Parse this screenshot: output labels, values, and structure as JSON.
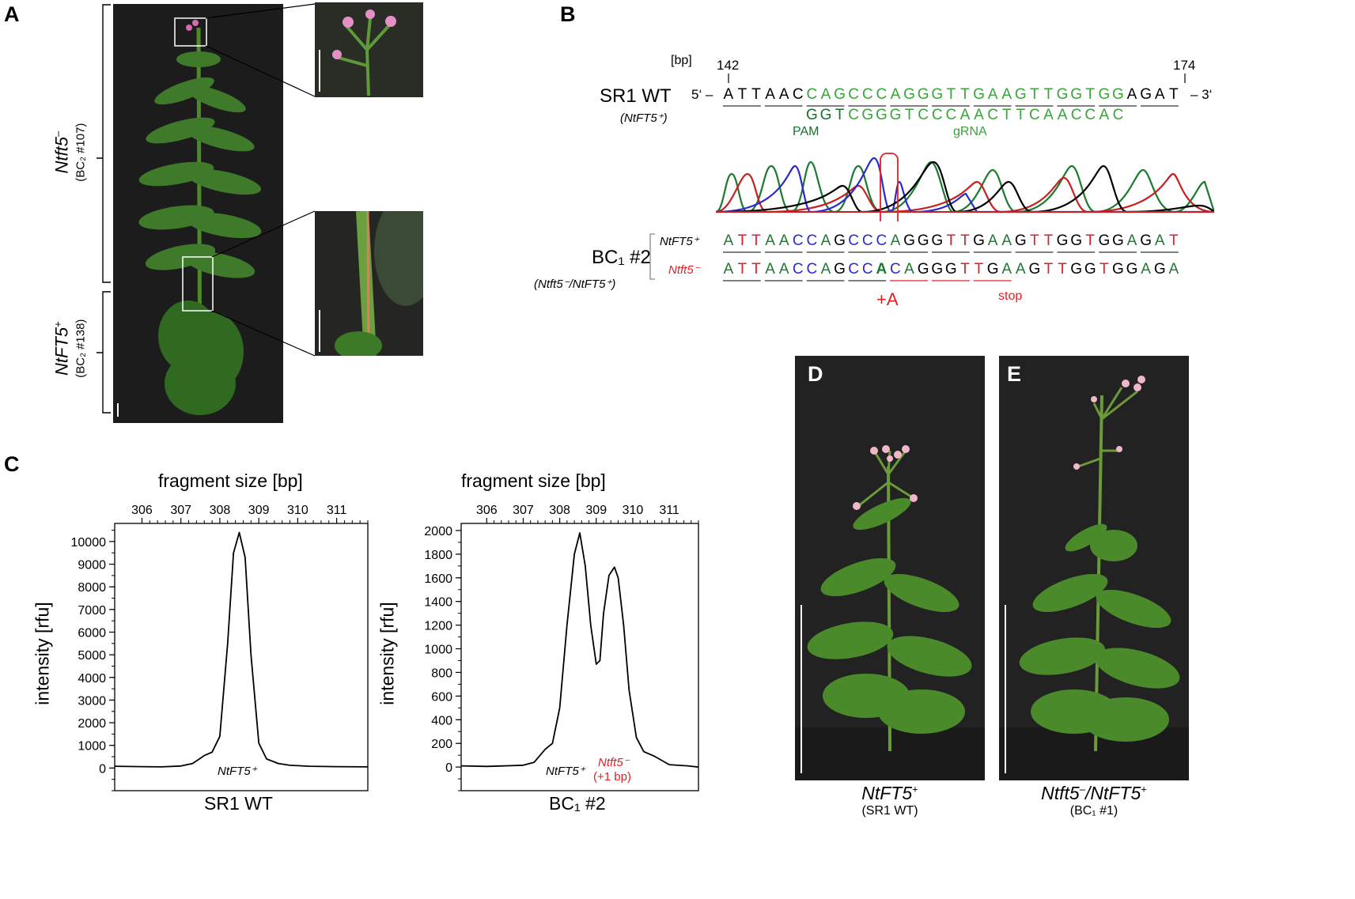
{
  "panels": {
    "a": "A",
    "b": "B",
    "c": "C",
    "d": "D",
    "e": "E"
  },
  "panel_a": {
    "upper_label_main": "Ntft5",
    "upper_label_sup": "–",
    "upper_label_sub": "(BC₂ #107)",
    "lower_label_main": "NtFT5",
    "lower_label_sup": "+",
    "lower_label_sub": "(BC₂ #138)"
  },
  "panel_b": {
    "bp_label": "[bp]",
    "pos_start": "142",
    "pos_end": "174",
    "five_prime": "5‘ –",
    "three_prime": "– 3‘",
    "wt_label": "SR1 WT",
    "wt_sub": "(NtFT5⁺)",
    "wt_seq": "ATTAACCAGCCCAGGGTTGAAGTTGGTGGAGAT",
    "grna_seq": "GGTCGGGTCCCAACTTCAACCAC",
    "pam_label": "PAM",
    "grna_label": "gRNA",
    "bc1_label": "BC₁ #2",
    "bc1_sub": "(Ntft5⁻/NtFT5⁺)",
    "allele1_label": "NtFT5⁺",
    "allele2_label": "Ntft5⁻",
    "allele1_seq": "ATTAACCAGCCCAGGGTTGAAGTTGGTGGAGAT",
    "allele2_seq": "ATTAACCAGCCACAGGGTTGAAGTTGGTGGAGA",
    "insertion_label": "+A",
    "stop_label": "stop",
    "colors": {
      "A": "#1a7a2e",
      "C": "#2a2ad0",
      "G": "#000000",
      "T": "#e31e24"
    }
  },
  "panel_c": {
    "xlabel_top": "fragment size [bp]",
    "ylabel": "intensity [rfu]"
  },
  "chart_data": [
    {
      "type": "line",
      "xlabel": "fragment size [bp]",
      "ylabel": "intensity [rfu]",
      "x_ticks": [
        "306",
        "307",
        "308",
        "309",
        "310",
        "311"
      ],
      "y_ticks": [
        "0",
        "1000",
        "2000",
        "3000",
        "4000",
        "5000",
        "6000",
        "7000",
        "8000",
        "9000",
        "10000"
      ],
      "xlim": [
        305.3,
        311.8
      ],
      "ylim": [
        -1000,
        10800
      ],
      "bottom_label": "SR1 WT",
      "annotations": [
        "NtFT5⁺"
      ],
      "series": [
        {
          "x": [
            305.3,
            306.0,
            306.5,
            307.0,
            307.3,
            307.6,
            307.8,
            308.0,
            308.2,
            308.35,
            308.5,
            308.65,
            308.8,
            309.0,
            309.2,
            309.5,
            309.8,
            310.3,
            311.0,
            311.8
          ],
          "values": [
            80,
            60,
            50,
            90,
            200,
            550,
            700,
            1400,
            5500,
            9500,
            10400,
            9300,
            5000,
            1100,
            400,
            200,
            120,
            80,
            60,
            50
          ]
        }
      ]
    },
    {
      "type": "line",
      "xlabel": "fragment size [bp]",
      "ylabel": "intensity [rfu]",
      "x_ticks": [
        "306",
        "307",
        "308",
        "309",
        "310",
        "311"
      ],
      "y_ticks": [
        "0",
        "200",
        "400",
        "600",
        "800",
        "1000",
        "1200",
        "1400",
        "1600",
        "1800",
        "2000"
      ],
      "xlim": [
        305.3,
        311.8
      ],
      "ylim": [
        -200,
        2060
      ],
      "bottom_label": "BC₁ #2",
      "annotations": [
        "NtFT5⁺",
        "Ntft5⁻",
        "(+1 bp)"
      ],
      "series": [
        {
          "x": [
            305.3,
            306.0,
            306.5,
            307.0,
            307.3,
            307.6,
            307.8,
            308.0,
            308.2,
            308.4,
            308.55,
            308.7,
            308.85,
            309.0,
            309.1,
            309.2,
            309.35,
            309.5,
            309.6,
            309.75,
            309.9,
            310.1,
            310.3,
            310.6,
            311.0,
            311.5,
            311.8
          ],
          "values": [
            10,
            5,
            10,
            15,
            40,
            150,
            200,
            500,
            1200,
            1800,
            1980,
            1700,
            1200,
            870,
            900,
            1300,
            1620,
            1690,
            1600,
            1200,
            650,
            250,
            130,
            90,
            20,
            10,
            0
          ]
        }
      ]
    }
  ],
  "panel_d": {
    "label_main": "NtFT5",
    "label_sup": "+",
    "label_sub": "(SR1 WT)"
  },
  "panel_e": {
    "label_main": "Ntft5",
    "label_sup": "–",
    "label_mid": "/NtFT5",
    "label_sup2": "+",
    "label_sub": "(BC₁ #1)"
  }
}
